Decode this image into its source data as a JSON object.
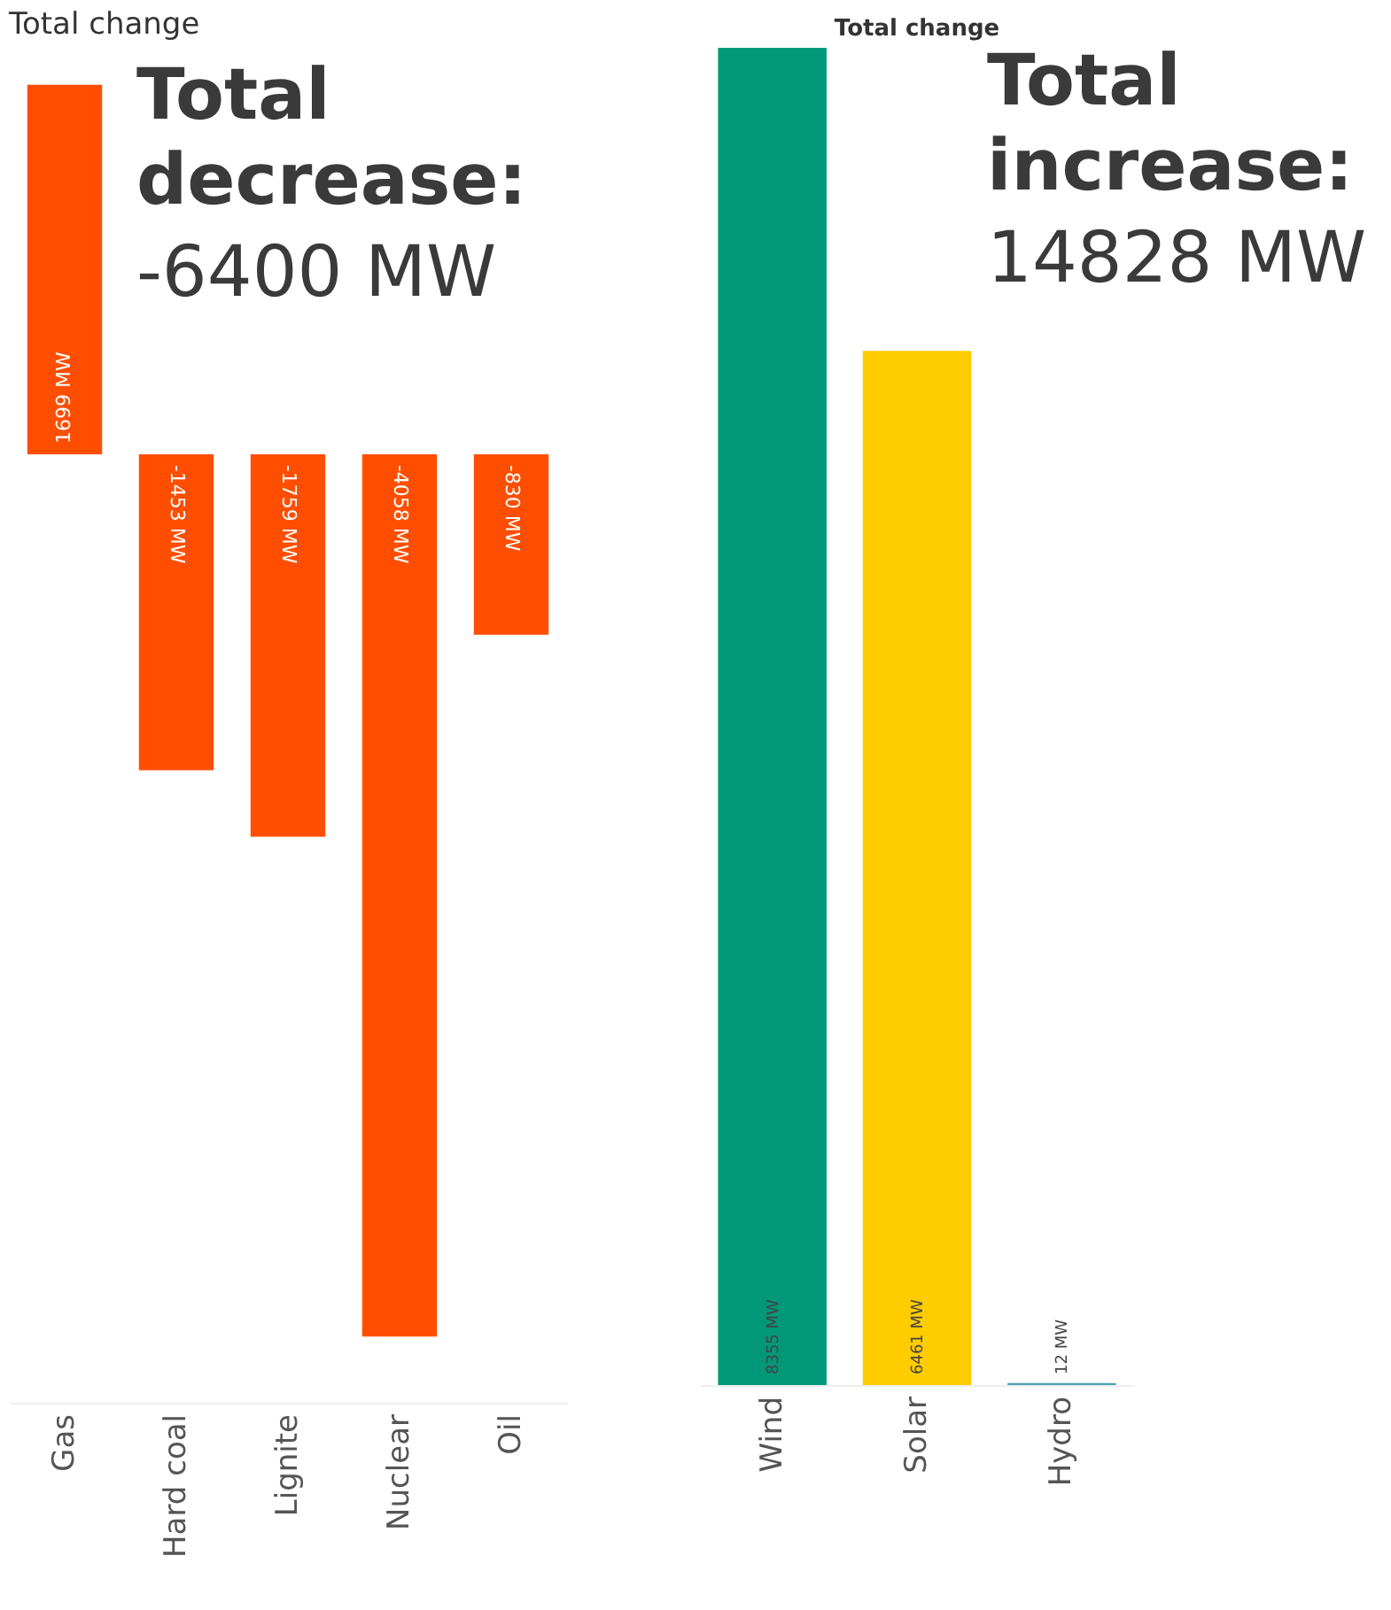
{
  "chart_data": [
    {
      "type": "bar",
      "title": "Total change",
      "categories": [
        "Gas",
        "Hard coal",
        "Lignite",
        "Nuclear",
        "Oil"
      ],
      "values": [
        1699,
        -1453,
        -1759,
        -4058,
        -830
      ],
      "colors": [
        "#ff4e00",
        "#ff4e00",
        "#ff4e00",
        "#ff4e00",
        "#ff4e00"
      ],
      "value_labels": [
        "1699 MW",
        "-1453 MW",
        "-1759 MW",
        "-4058 MW",
        "-830 MW"
      ],
      "annotations": [
        "Total decrease:",
        "-6400 MW"
      ],
      "tick_labels": "x",
      "grid": false
    },
    {
      "type": "bar",
      "title": "Total change",
      "categories": [
        "Wind",
        "Solar",
        "Hydro"
      ],
      "values": [
        8355,
        6461,
        12
      ],
      "colors": [
        "#009879",
        "#ffcc00",
        "#4aa3b0"
      ],
      "value_labels": [
        "8355 MW",
        "6461 MW",
        "12 MW"
      ],
      "annotations": [
        "Total increase:",
        "14828 MW"
      ],
      "tick_labels": "x",
      "grid": false
    }
  ]
}
